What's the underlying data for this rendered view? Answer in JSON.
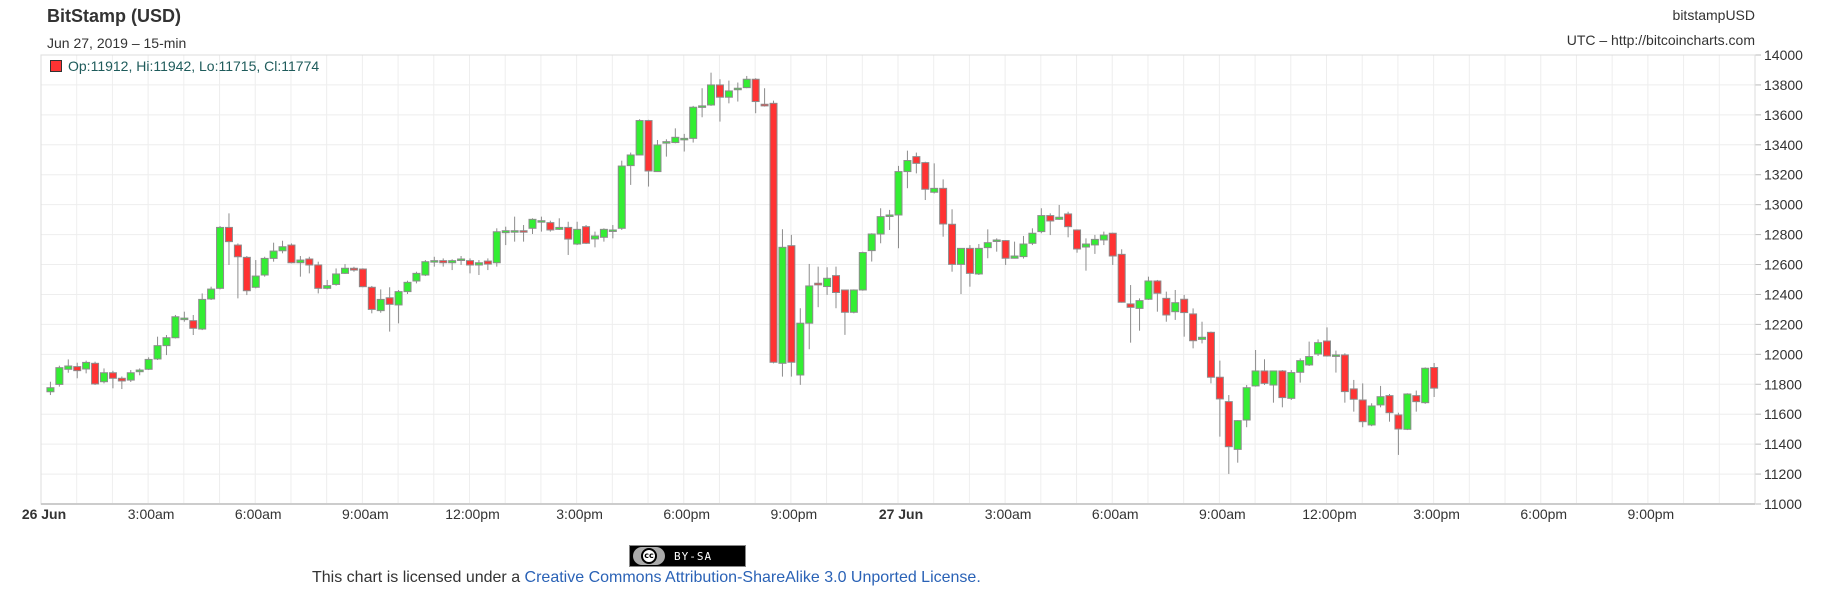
{
  "header": {
    "title": "BitStamp (USD)",
    "subtitle": "Jun 27, 2019 – 15-min",
    "symbol": "bitstampUSD",
    "source": "UTC – http://bitcoincharts.com",
    "legend": "Op:11912, Hi:11942, Lo:11715, Cl:11774"
  },
  "footer": {
    "badge_label": "BY-SA",
    "badge_logo": "cc",
    "license_prefix": "This chart is licensed under a ",
    "license_link": "Creative Commons Attribution-ShareAlike 3.0 Unported License."
  },
  "colors": {
    "up": "#33ee33",
    "down": "#ff3333",
    "outline": "#8c8c8c",
    "grid": "#eeeeee",
    "legend_text": "#1e5b5b",
    "link": "#2a62b6"
  },
  "chart_data": {
    "type": "candlestick",
    "interval": "15-min",
    "title": "BitStamp (USD)",
    "ylim": [
      11000,
      14000
    ],
    "yticks": [
      14000,
      13800,
      13600,
      13400,
      13200,
      13000,
      12800,
      12600,
      12400,
      12200,
      12000,
      11800,
      11600,
      11400,
      11200,
      11000
    ],
    "y_axis_side": "right",
    "xlim_hours_from_26_Jun": [
      0,
      48
    ],
    "xticks": [
      {
        "label": "26 Jun",
        "hour": 0,
        "bold": true
      },
      {
        "label": "3:00am",
        "hour": 3
      },
      {
        "label": "6:00am",
        "hour": 6
      },
      {
        "label": "9:00am",
        "hour": 9
      },
      {
        "label": "12:00pm",
        "hour": 12
      },
      {
        "label": "3:00pm",
        "hour": 15
      },
      {
        "label": "6:00pm",
        "hour": 18
      },
      {
        "label": "9:00pm",
        "hour": 21
      },
      {
        "label": "27 Jun",
        "hour": 24,
        "bold": true
      },
      {
        "label": "3:00am",
        "hour": 27
      },
      {
        "label": "6:00am",
        "hour": 30
      },
      {
        "label": "9:00am",
        "hour": 33
      },
      {
        "label": "12:00pm",
        "hour": 36
      },
      {
        "label": "3:00pm",
        "hour": 39
      },
      {
        "label": "6:00pm",
        "hour": 42
      },
      {
        "label": "9:00pm",
        "hour": 45
      }
    ],
    "grid": true,
    "ohlc_fields": [
      "open",
      "high",
      "low",
      "close"
    ],
    "candles": [
      [
        11750,
        11817,
        11728,
        11777
      ],
      [
        11799,
        11924,
        11784,
        11911
      ],
      [
        11900,
        11966,
        11877,
        11922
      ],
      [
        11918,
        11944,
        11840,
        11891
      ],
      [
        11902,
        11958,
        11873,
        11946
      ],
      [
        11940,
        11951,
        11795,
        11802
      ],
      [
        11817,
        11906,
        11806,
        11877
      ],
      [
        11877,
        11890,
        11773,
        11840
      ],
      [
        11840,
        11852,
        11768,
        11822
      ],
      [
        11828,
        11895,
        11815,
        11877
      ],
      [
        11884,
        11906,
        11860,
        11895
      ],
      [
        11900,
        11980,
        11895,
        11966
      ],
      [
        11969,
        12118,
        11962,
        12058
      ],
      [
        12058,
        12129,
        11995,
        12111
      ],
      [
        12111,
        12263,
        12106,
        12251
      ],
      [
        12240,
        12285,
        12218,
        12242
      ],
      [
        12225,
        12263,
        12129,
        12174
      ],
      [
        12169,
        12407,
        12162,
        12367
      ],
      [
        12370,
        12452,
        12363,
        12436
      ],
      [
        12441,
        12857,
        12434,
        12848
      ],
      [
        12848,
        12942,
        12597,
        12753
      ],
      [
        12730,
        12741,
        12374,
        12652
      ],
      [
        12648,
        12657,
        12396,
        12425
      ],
      [
        12448,
        12630,
        12441,
        12523
      ],
      [
        12530,
        12652,
        12519,
        12641
      ],
      [
        12641,
        12746,
        12619,
        12690
      ],
      [
        12692,
        12759,
        12675,
        12719
      ],
      [
        12730,
        12741,
        12608,
        12612
      ],
      [
        12612,
        12657,
        12519,
        12630
      ],
      [
        12637,
        12652,
        12541,
        12597
      ],
      [
        12597,
        12619,
        12407,
        12441
      ],
      [
        12441,
        12497,
        12434,
        12459
      ],
      [
        12467,
        12574,
        12459,
        12537
      ],
      [
        12541,
        12603,
        12537,
        12575
      ],
      [
        12575,
        12585,
        12552,
        12563
      ],
      [
        12570,
        12575,
        12448,
        12452
      ],
      [
        12448,
        12457,
        12274,
        12300
      ],
      [
        12292,
        12434,
        12278,
        12367
      ],
      [
        12378,
        12448,
        12152,
        12334
      ],
      [
        12330,
        12430,
        12207,
        12419
      ],
      [
        12419,
        12492,
        12403,
        12481
      ],
      [
        12490,
        12552,
        12474,
        12541
      ],
      [
        12530,
        12630,
        12523,
        12619
      ],
      [
        12626,
        12652,
        12586,
        12626
      ],
      [
        12626,
        12641,
        12586,
        12612
      ],
      [
        12612,
        12635,
        12563,
        12626
      ],
      [
        12637,
        12657,
        12597,
        12637
      ],
      [
        12626,
        12641,
        12541,
        12597
      ],
      [
        12597,
        12630,
        12530,
        12612
      ],
      [
        12623,
        12641,
        12563,
        12603
      ],
      [
        12612,
        12842,
        12586,
        12819
      ],
      [
        12813,
        12853,
        12730,
        12826
      ],
      [
        12826,
        12920,
        12753,
        12826
      ],
      [
        12826,
        12864,
        12753,
        12822
      ],
      [
        12842,
        12909,
        12804,
        12902
      ],
      [
        12893,
        12920,
        12820,
        12893
      ],
      [
        12880,
        12893,
        12820,
        12831
      ],
      [
        12835,
        12909,
        12831,
        12848
      ],
      [
        12848,
        12886,
        12664,
        12770
      ],
      [
        12737,
        12886,
        12730,
        12835
      ],
      [
        12853,
        12864,
        12737,
        12742
      ],
      [
        12771,
        12820,
        12715,
        12791
      ],
      [
        12782,
        12842,
        12753,
        12835
      ],
      [
        12831,
        12864,
        12775,
        12831
      ],
      [
        12842,
        13294,
        12831,
        13258
      ],
      [
        13261,
        13348,
        13132,
        13332
      ],
      [
        13332,
        13571,
        13332,
        13562
      ],
      [
        13562,
        13567,
        13121,
        13225
      ],
      [
        13221,
        13432,
        13221,
        13399
      ],
      [
        13421,
        13437,
        13321,
        13421
      ],
      [
        13415,
        13510,
        13410,
        13450
      ],
      [
        13443,
        13473,
        13355,
        13443
      ],
      [
        13443,
        13660,
        13415,
        13651
      ],
      [
        13660,
        13778,
        13584,
        13660
      ],
      [
        13666,
        13882,
        13660,
        13800
      ],
      [
        13800,
        13838,
        13555,
        13718
      ],
      [
        13718,
        13829,
        13677,
        13760
      ],
      [
        13778,
        13816,
        13689,
        13778
      ],
      [
        13782,
        13860,
        13778,
        13838
      ],
      [
        13838,
        13845,
        13611,
        13689
      ],
      [
        13671,
        13778,
        13655,
        13660
      ],
      [
        13677,
        13695,
        11940,
        11947
      ],
      [
        11940,
        12836,
        11851,
        12715
      ],
      [
        12726,
        12798,
        11851,
        11947
      ],
      [
        11862,
        12308,
        11796,
        12208
      ],
      [
        12208,
        12604,
        12034,
        12457
      ],
      [
        12475,
        12586,
        12315,
        12464
      ],
      [
        12453,
        12582,
        12397,
        12508
      ],
      [
        12526,
        12586,
        12308,
        12413
      ],
      [
        12430,
        12430,
        12130,
        12281
      ],
      [
        12281,
        12434,
        12274,
        12430
      ],
      [
        12430,
        12686,
        12425,
        12680
      ],
      [
        12693,
        12809,
        12620,
        12804
      ],
      [
        12804,
        12976,
        12742,
        12920
      ],
      [
        12926,
        12965,
        12831,
        12931
      ],
      [
        12931,
        13259,
        12709,
        13221
      ],
      [
        13221,
        13361,
        13110,
        13295
      ],
      [
        13321,
        13348,
        13209,
        13276
      ],
      [
        13281,
        13287,
        13031,
        13103
      ],
      [
        13083,
        13276,
        13075,
        13109
      ],
      [
        13109,
        13169,
        12786,
        12871
      ],
      [
        12869,
        12969,
        12552,
        12601
      ],
      [
        12601,
        12708,
        12403,
        12708
      ],
      [
        12708,
        12730,
        12452,
        12541
      ],
      [
        12537,
        12737,
        12530,
        12708
      ],
      [
        12713,
        12835,
        12642,
        12746
      ],
      [
        12764,
        12775,
        12686,
        12764
      ],
      [
        12760,
        12764,
        12597,
        12642
      ],
      [
        12642,
        12753,
        12640,
        12657
      ],
      [
        12653,
        12791,
        12640,
        12737
      ],
      [
        12742,
        12842,
        12730,
        12809
      ],
      [
        12820,
        12976,
        12809,
        12927
      ],
      [
        12927,
        12942,
        12797,
        12891
      ],
      [
        12902,
        12998,
        12898,
        12916
      ],
      [
        12938,
        12953,
        12782,
        12853
      ],
      [
        12831,
        12835,
        12679,
        12704
      ],
      [
        12717,
        12775,
        12559,
        12737
      ],
      [
        12731,
        12798,
        12671,
        12768
      ],
      [
        12764,
        12820,
        12730,
        12797
      ],
      [
        12809,
        12813,
        12597,
        12657
      ],
      [
        12668,
        12702,
        12345,
        12348
      ],
      [
        12337,
        12463,
        12078,
        12314
      ],
      [
        12307,
        12374,
        12158,
        12359
      ],
      [
        12368,
        12519,
        12363,
        12490
      ],
      [
        12490,
        12497,
        12285,
        12408
      ],
      [
        12374,
        12419,
        12218,
        12263
      ],
      [
        12285,
        12430,
        12230,
        12345
      ],
      [
        12368,
        12397,
        12118,
        12279
      ],
      [
        12270,
        12307,
        12040,
        12091
      ],
      [
        12100,
        12218,
        12073,
        12114
      ],
      [
        12147,
        12152,
        11806,
        11847
      ],
      [
        11847,
        11958,
        11450,
        11702
      ],
      [
        11684,
        11728,
        11201,
        11383
      ],
      [
        11365,
        11560,
        11276,
        11557
      ],
      [
        11561,
        11795,
        11513,
        11777
      ],
      [
        11789,
        12029,
        11784,
        11889
      ],
      [
        11889,
        11967,
        11795,
        11806
      ],
      [
        11795,
        11891,
        11677,
        11889
      ],
      [
        11889,
        11895,
        11646,
        11711
      ],
      [
        11706,
        11895,
        11695,
        11878
      ],
      [
        11880,
        11973,
        11811,
        11958
      ],
      [
        11929,
        12085,
        11922,
        11985
      ],
      [
        12002,
        12100,
        11989,
        12078
      ],
      [
        12089,
        12180,
        11985,
        11989
      ],
      [
        11996,
        12025,
        11878,
        11996
      ],
      [
        11996,
        12007,
        11677,
        11751
      ],
      [
        11769,
        11829,
        11617,
        11700
      ],
      [
        11695,
        11806,
        11513,
        11550
      ],
      [
        11528,
        11673,
        11520,
        11655
      ],
      [
        11662,
        11789,
        11646,
        11717
      ],
      [
        11724,
        11735,
        11550,
        11610
      ],
      [
        11595,
        11610,
        11328,
        11501
      ],
      [
        11499,
        11740,
        11494,
        11735
      ],
      [
        11724,
        11758,
        11617,
        11684
      ],
      [
        11677,
        11913,
        11669,
        11907
      ],
      [
        11912,
        11942,
        11715,
        11774
      ]
    ]
  }
}
